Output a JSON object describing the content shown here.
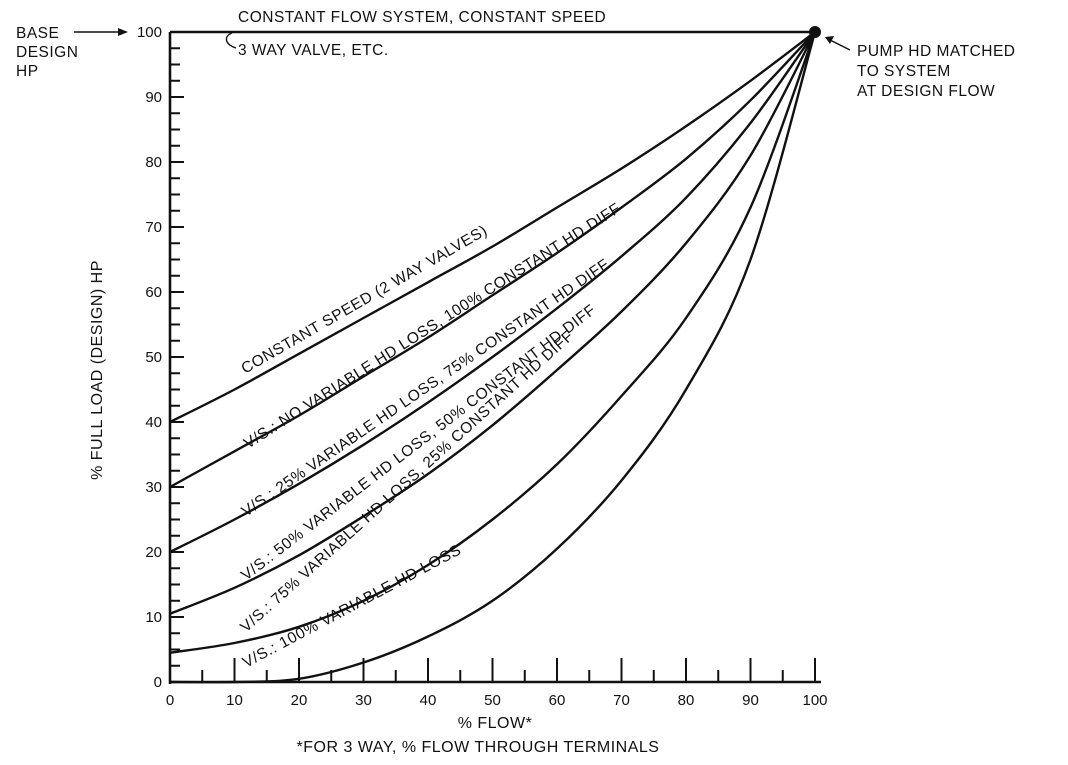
{
  "chart_data": {
    "type": "line",
    "title": "",
    "xlabel": "% FLOW*",
    "xlabel_note": "*FOR 3 WAY, % FLOW THROUGH TERMINALS",
    "ylabel": "% FULL LOAD (DESIGN) HP",
    "xlim": [
      0,
      100
    ],
    "ylim": [
      0,
      100
    ],
    "x_ticks": [
      0,
      10,
      20,
      30,
      40,
      50,
      60,
      70,
      80,
      90,
      100
    ],
    "y_ticks": [
      0,
      10,
      20,
      30,
      40,
      50,
      60,
      70,
      80,
      90,
      100
    ],
    "grid": false,
    "series": [
      {
        "name": "CONSTANT FLOW SYSTEM, CONSTANT SPEED",
        "x": [
          0,
          100
        ],
        "values": [
          100,
          100
        ]
      },
      {
        "name": "CONSTANT SPEED (2 WAY VALVES)",
        "x": [
          0,
          10,
          20,
          30,
          40,
          50,
          60,
          70,
          80,
          90,
          100
        ],
        "values": [
          40,
          45,
          50.5,
          56,
          61.5,
          67,
          73,
          79,
          85.5,
          92.5,
          100
        ]
      },
      {
        "name": "V/S.: NO VARIABLE HD LOSS, 100% CONSTANT HD DIFF",
        "x": [
          0,
          10,
          20,
          30,
          40,
          50,
          60,
          70,
          80,
          90,
          100
        ],
        "values": [
          30,
          35.5,
          41,
          47,
          53,
          59.5,
          66,
          73,
          80.5,
          89.5,
          100
        ]
      },
      {
        "name": "V/S.: 25% VARIABLE HD LOSS, 75% CONSTANT HD DIFF",
        "x": [
          0,
          10,
          20,
          30,
          40,
          50,
          60,
          70,
          80,
          90,
          100
        ],
        "values": [
          20,
          25,
          30.5,
          36.5,
          43,
          50,
          57.5,
          65.5,
          74.5,
          86,
          100
        ]
      },
      {
        "name": "V/S.: 50% VARIABLE HD LOSS, 50% CONSTANT HD DIFF",
        "x": [
          0,
          10,
          20,
          30,
          40,
          50,
          60,
          70,
          80,
          90,
          100
        ],
        "values": [
          10.5,
          14.5,
          19.5,
          25.5,
          32,
          39.5,
          48,
          57,
          67.5,
          81,
          100
        ]
      },
      {
        "name": "V/S.: 75% VARIABLE HD LOSS, 25% CONSTANT HD DIFF",
        "x": [
          0,
          10,
          20,
          30,
          40,
          50,
          60,
          70,
          80,
          90,
          100
        ],
        "values": [
          4.5,
          6,
          8.5,
          12.5,
          18,
          25,
          33.5,
          44,
          56,
          73,
          100
        ]
      },
      {
        "name": "V/S.: 100% VARIABLE HD LOSS",
        "x": [
          0,
          10,
          20,
          30,
          40,
          50,
          60,
          70,
          80,
          90,
          100
        ],
        "values": [
          0,
          0,
          0.5,
          3,
          7,
          12.5,
          20.5,
          31,
          45,
          65,
          100
        ]
      }
    ],
    "annotations": {
      "base_design_hp": [
        "BASE",
        "DESIGN",
        "HP"
      ],
      "three_way": "3 WAY VALVE, ETC.",
      "pump_hd_matched": [
        "PUMP HD MATCHED",
        "TO SYSTEM",
        "AT DESIGN FLOW"
      ]
    }
  }
}
